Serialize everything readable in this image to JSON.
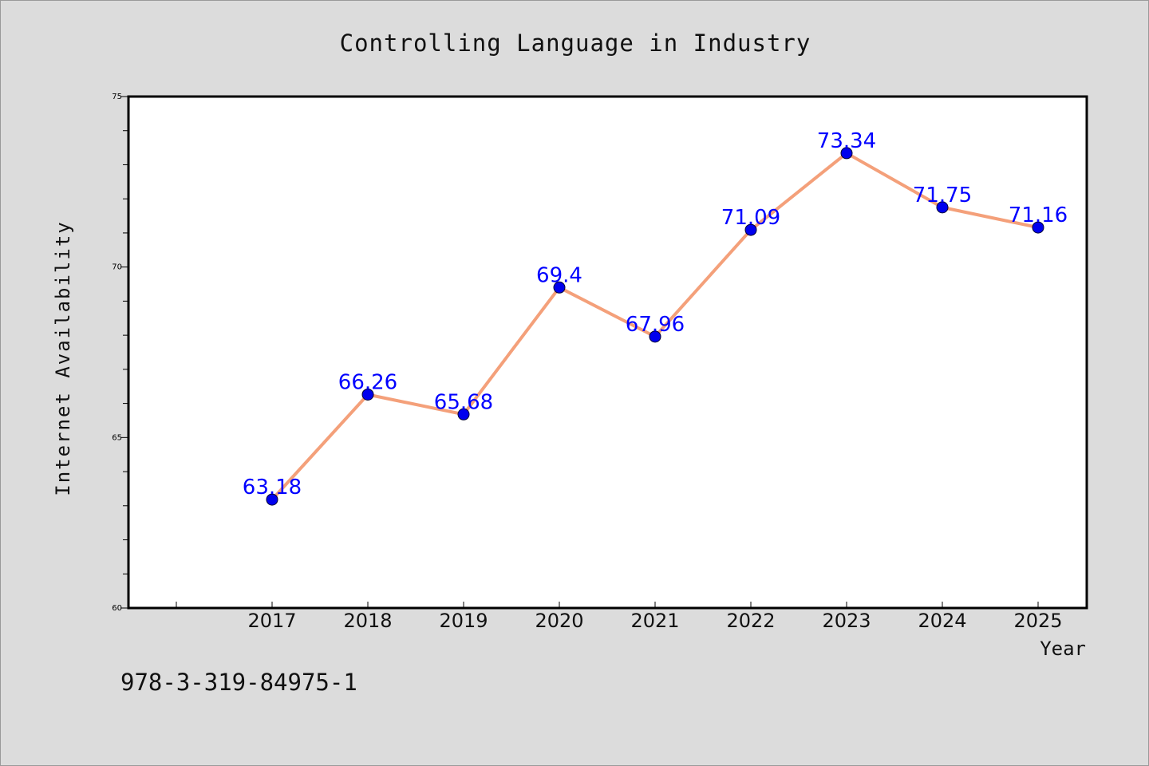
{
  "chart_data": {
    "type": "line",
    "title": "Controlling Language in Industry",
    "xlabel": "Year",
    "ylabel": "Internet Availability",
    "categories": [
      "2017",
      "2018",
      "2019",
      "2020",
      "2021",
      "2022",
      "2023",
      "2024",
      "2025"
    ],
    "series": [
      {
        "values": [
          63.18,
          66.26,
          65.68,
          69.4,
          67.96,
          71.09,
          73.34,
          71.75,
          71.16
        ],
        "labels": [
          "63.18",
          "66.26",
          "65.68",
          "69.4",
          "67.96",
          "71.09",
          "73.34",
          "71.75",
          "71.16"
        ]
      }
    ],
    "ylim": [
      60,
      75
    ],
    "yticks": [
      "60",
      "65",
      "70",
      "75"
    ],
    "grid": false,
    "legend": "none",
    "colors": {
      "line": "#f4a07a",
      "marker": "#0000ee",
      "data_label": "#0000ff",
      "plot_background": "#ffffff",
      "figure_background": "#dcdcdc"
    }
  },
  "footer_code": "978-3-319-84975-1"
}
